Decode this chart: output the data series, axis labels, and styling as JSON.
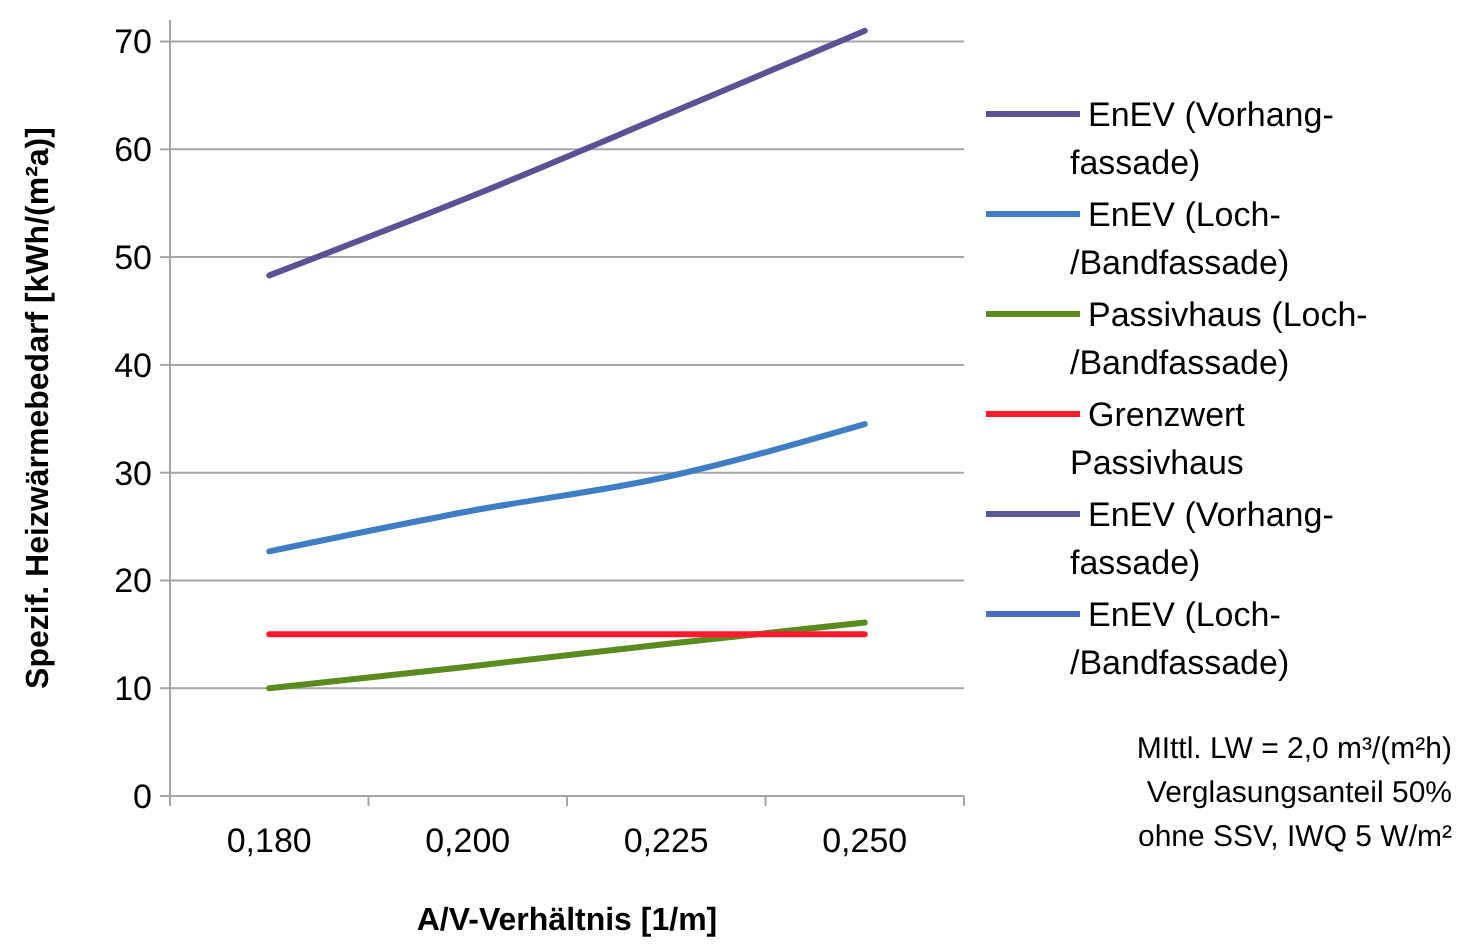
{
  "chart_data": {
    "type": "line",
    "xlabel": "A/V-Verhältnis  [1/m]",
    "ylabel": "Spezif. Heizwärmebedarf [kWh/(m²a)]",
    "categories": [
      "0,180",
      "0,200",
      "0,225",
      "0,250"
    ],
    "series": [
      {
        "name": "EnEV (Vorhang-fassade)",
        "color": "#5b5295",
        "values": [
          48.3,
          55.5,
          63.2,
          71.0
        ]
      },
      {
        "name": "EnEV (Loch-/Bandfassade)",
        "color": "#3f7ec4",
        "values": [
          22.7,
          26.4,
          29.6,
          34.5
        ]
      },
      {
        "name": "Passivhaus (Loch-/Bandfassade)",
        "color": "#5b8a1e",
        "values": [
          10.0,
          12.0,
          14.1,
          16.1
        ]
      },
      {
        "name": "Grenzwert Passivhaus",
        "color": "#ff1a2e",
        "values": [
          15,
          15,
          15,
          15
        ]
      },
      {
        "name": "EnEV (Vorhang-fassade)",
        "color": "#5a5a9a",
        "values": [
          null,
          null,
          null,
          null
        ]
      },
      {
        "name": "EnEV (Loch-/Bandfassade)",
        "color": "#4a6cc0",
        "values": [
          null,
          null,
          null,
          null
        ]
      }
    ],
    "ylim": [
      0,
      72
    ],
    "yticks": [
      0,
      10,
      20,
      30,
      40,
      50,
      60,
      70
    ],
    "grid": "y",
    "legend": "right",
    "line_style": "solid",
    "marker": "none",
    "annotations": [
      "MIttl. LW = 2,0 m³/(m²h)",
      "Verglasungsanteil 50%",
      "ohne SSV, IWQ 5 W/m²"
    ]
  }
}
